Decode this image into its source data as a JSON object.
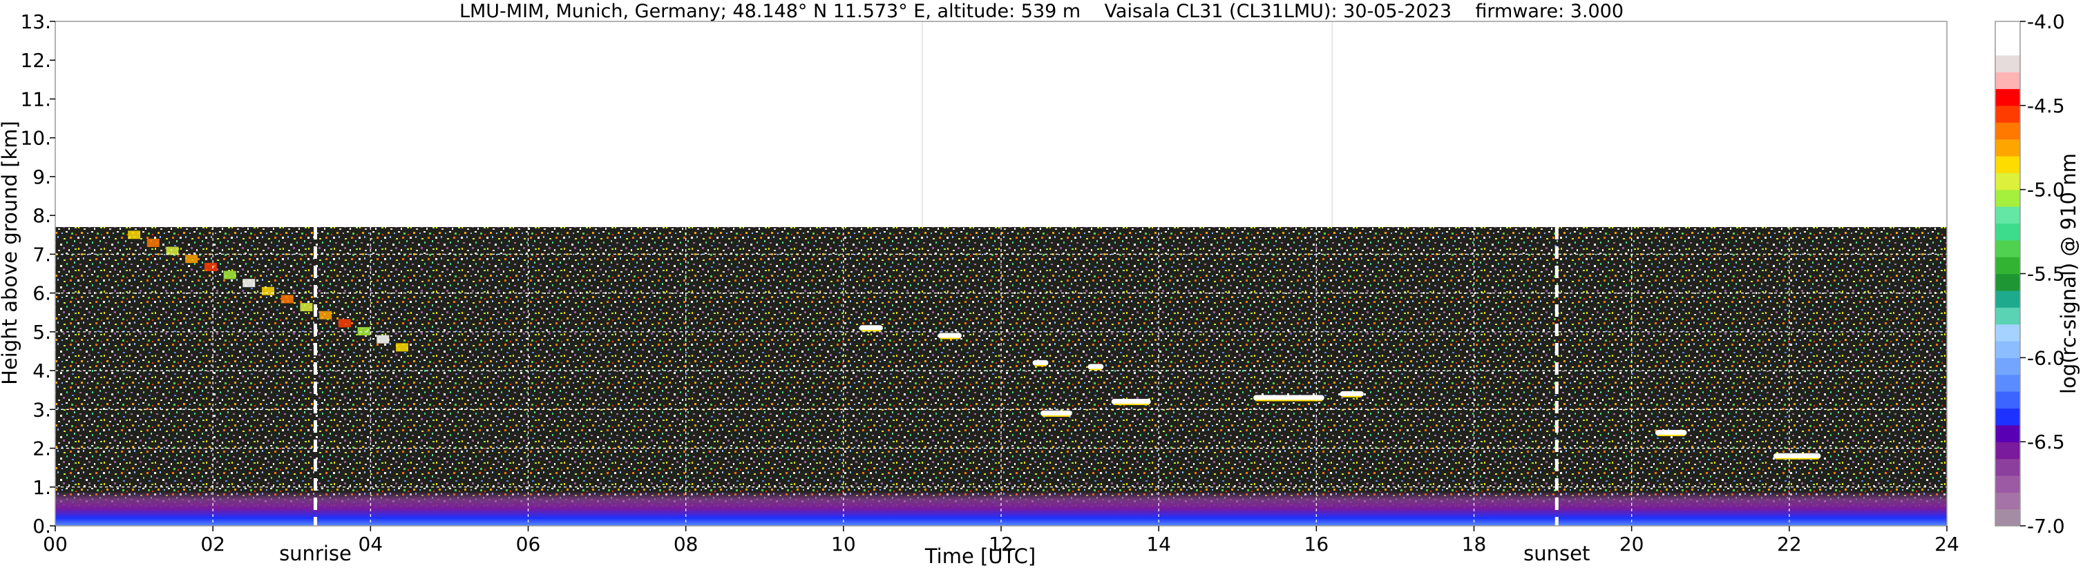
{
  "chart_data": {
    "type": "heatmap",
    "title": "LMU-MIM, Munich, Germany; 48.148° N 11.573° E, altitude: 539 m    Vaisala CL31 (CL31LMU): 30-05-2023    firmware: 3.000",
    "xlabel": "Time [UTC]",
    "ylabel": "Height above ground [km]",
    "xlim": [
      0,
      24
    ],
    "ylim": [
      0,
      13
    ],
    "x_ticks": [
      "00",
      "02",
      "04",
      "06",
      "08",
      "10",
      "12",
      "14",
      "16",
      "18",
      "20",
      "22",
      "24"
    ],
    "x_tick_values": [
      0,
      2,
      4,
      6,
      8,
      10,
      12,
      14,
      16,
      18,
      20,
      22,
      24
    ],
    "y_ticks": [
      "0.",
      "1.",
      "2.",
      "3.",
      "4.",
      "5.",
      "6.",
      "7.",
      "8.",
      "9.",
      "10.",
      "11.",
      "12.",
      "13."
    ],
    "y_tick_values": [
      0,
      1,
      2,
      3,
      4,
      5,
      6,
      7,
      8,
      9,
      10,
      11,
      12,
      13
    ],
    "grid": true,
    "data_top_km": 7.7,
    "sunrise": {
      "label": "sunrise",
      "time": 3.3
    },
    "sunset": {
      "label": "sunset",
      "time": 19.05
    },
    "colorbar": {
      "label": "log(rc-signal) @ 910 nm",
      "range": [
        -7.0,
        -4.0
      ],
      "ticks": [
        "-4.0",
        "-4.5",
        "-5.0",
        "-5.5",
        "-6.0",
        "-6.5",
        "-7.0"
      ],
      "tick_values": [
        -4.0,
        -4.5,
        -5.0,
        -5.5,
        -6.0,
        -6.5,
        -7.0
      ],
      "colors": [
        "#a58ca5",
        "#a573a5",
        "#9c5aa5",
        "#8c3f9c",
        "#7a1a9c",
        "#5a00b4",
        "#1e32ff",
        "#3c64ff",
        "#5a8cff",
        "#73a5ff",
        "#8cbeff",
        "#a5d2ff",
        "#5ad2b4",
        "#1eaa8c",
        "#1e9633",
        "#32b432",
        "#50d250",
        "#3cdc8c",
        "#64e6a5",
        "#a5f03c",
        "#dcf03c",
        "#ffdc00",
        "#ffa500",
        "#ff7800",
        "#ff3c00",
        "#ff0000",
        "#ffb4b4",
        "#e6dcdc",
        "#ffffff",
        "#ffffff"
      ]
    },
    "features": [
      {
        "type": "boundary_layer",
        "start": 0,
        "end": 24,
        "height_km": 0.9
      },
      {
        "type": "cloud_layer",
        "start": 1.0,
        "end": 4.4,
        "height_km_start": 7.5,
        "height_km_end": 4.6
      },
      {
        "type": "cloud_segment",
        "start": 10.2,
        "end": 10.5,
        "height_km": 5.1
      },
      {
        "type": "cloud_segment",
        "start": 11.2,
        "end": 11.5,
        "height_km": 4.9
      },
      {
        "type": "cloud_segment",
        "start": 12.4,
        "end": 12.6,
        "height_km": 4.2
      },
      {
        "type": "cloud_segment",
        "start": 12.5,
        "end": 12.9,
        "height_km": 2.9
      },
      {
        "type": "cloud_segment",
        "start": 13.1,
        "end": 13.3,
        "height_km": 4.1
      },
      {
        "type": "cloud_segment",
        "start": 13.4,
        "end": 13.9,
        "height_km": 3.2
      },
      {
        "type": "cloud_segment",
        "start": 15.2,
        "end": 16.1,
        "height_km": 3.3
      },
      {
        "type": "cloud_segment",
        "start": 16.3,
        "end": 16.6,
        "height_km": 3.4
      },
      {
        "type": "cloud_segment",
        "start": 20.3,
        "end": 20.7,
        "height_km": 2.4
      },
      {
        "type": "cloud_segment",
        "start": 21.8,
        "end": 22.4,
        "height_km": 1.8
      }
    ]
  }
}
